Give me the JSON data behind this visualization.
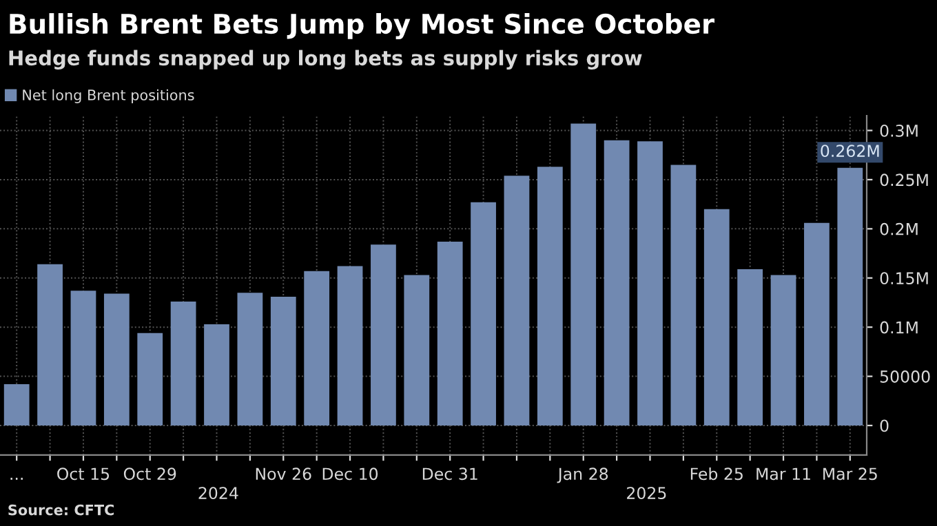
{
  "chart_data": {
    "type": "bar",
    "title": "Bullish Brent Bets Jump by Most Since October",
    "subtitle": "Hedge funds snapped up long bets as supply risks grow",
    "categories": [
      "...",
      null,
      "Oct 15",
      null,
      "Oct 29",
      null,
      null,
      null,
      "Nov 26",
      null,
      "Dec 10",
      null,
      null,
      "Dec 31",
      null,
      null,
      null,
      "Jan 28",
      null,
      null,
      null,
      "Feb 25",
      null,
      "Mar 11",
      null,
      "Mar 25"
    ],
    "series": [
      {
        "name": "Net long Brent positions",
        "color": "#7189b1",
        "values": [
          42000,
          164000,
          137000,
          134000,
          94000,
          126000,
          103000,
          135000,
          131000,
          157000,
          162000,
          184000,
          153000,
          187000,
          227000,
          254000,
          263000,
          307000,
          290000,
          289000,
          265000,
          220000,
          159000,
          153000,
          206000,
          262000
        ],
        "value_labels": [
          null,
          null,
          null,
          null,
          null,
          null,
          null,
          null,
          null,
          null,
          null,
          null,
          null,
          null,
          null,
          null,
          null,
          null,
          null,
          null,
          null,
          null,
          null,
          null,
          null,
          "0.262M"
        ]
      }
    ],
    "ylim": [
      -30000,
      315000
    ],
    "yticks": [
      0,
      50000,
      {
        "value": 100000,
        "label": "0.1M"
      },
      {
        "value": 150000,
        "label": "0.15M"
      },
      {
        "value": 200000,
        "label": "0.2M"
      },
      {
        "value": 250000,
        "label": "0.25M"
      },
      {
        "value": 300000,
        "label": "0.3M"
      }
    ],
    "grid": true,
    "legend": "top left",
    "annotations": [
      "2024",
      "2025",
      "Source: CFTC"
    ]
  }
}
